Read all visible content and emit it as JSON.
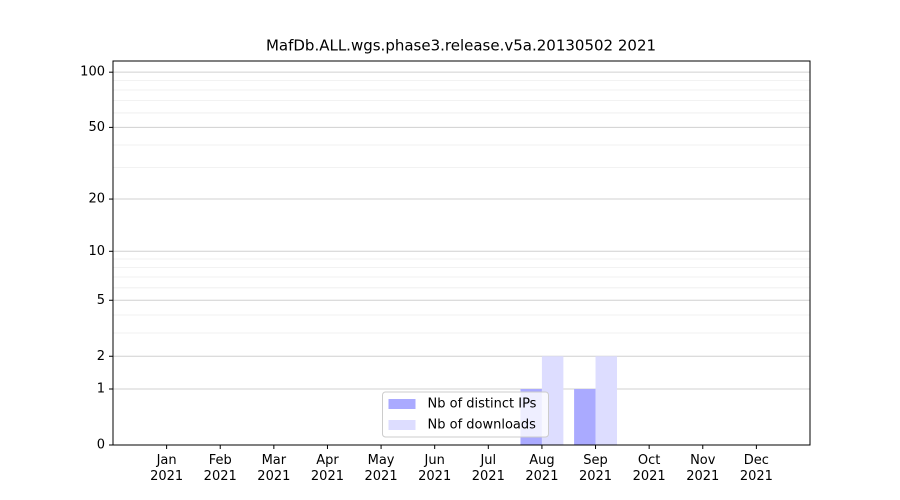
{
  "chart_data": {
    "type": "bar",
    "title": "MafDb.ALL.wgs.phase3.release.v5a.20130502 2021",
    "categories": [
      "Jan\n2021",
      "Feb\n2021",
      "Mar\n2021",
      "Apr\n2021",
      "May\n2021",
      "Jun\n2021",
      "Jul\n2021",
      "Aug\n2021",
      "Sep\n2021",
      "Oct\n2021",
      "Nov\n2021",
      "Dec\n2021"
    ],
    "series": [
      {
        "name": "Nb of distinct IPs",
        "color": "#aaaaff",
        "values": [
          0,
          0,
          0,
          0,
          0,
          0,
          0,
          1,
          1,
          0,
          0,
          0
        ]
      },
      {
        "name": "Nb of downloads",
        "color": "#ddddff",
        "values": [
          0,
          0,
          0,
          0,
          0,
          0,
          0,
          2,
          2,
          0,
          0,
          0
        ]
      }
    ],
    "yscale": "log1p",
    "ylim": [
      0,
      115
    ],
    "yticks": [
      0,
      1,
      2,
      5,
      10,
      20,
      50,
      100
    ],
    "minor_yticks": [
      3,
      4,
      6,
      7,
      8,
      9,
      30,
      40,
      60,
      70,
      80,
      90
    ],
    "grid": true,
    "legend": "lower center"
  }
}
